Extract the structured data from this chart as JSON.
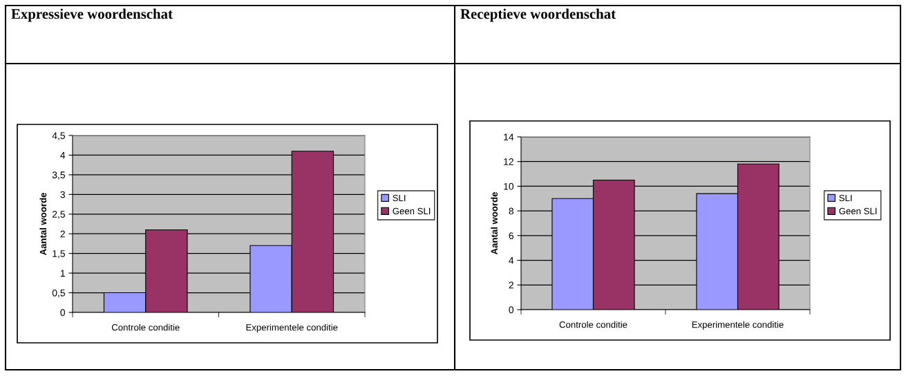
{
  "chart_data": [
    {
      "type": "bar",
      "title": "Expressieve woordenschat",
      "ylabel": "Aantal woorde",
      "categories": [
        "Controle conditie",
        "Experimentele conditie"
      ],
      "series": [
        {
          "name": "SLI",
          "color": "#9999ff",
          "values": [
            0.5,
            1.7
          ]
        },
        {
          "name": "Geen SLI",
          "color": "#993366",
          "values": [
            2.1,
            4.1
          ]
        }
      ],
      "ylim": [
        0,
        4.5
      ],
      "yticks": [
        0,
        {
          "value": 0.5,
          "label": "0,5"
        },
        1,
        {
          "value": 1.5,
          "label": "1,5"
        },
        2,
        {
          "value": 2.5,
          "label": "2,5"
        },
        3,
        {
          "value": 3.5,
          "label": "3,5"
        },
        4,
        {
          "value": 4.5,
          "label": "4,5"
        }
      ],
      "grid": "y",
      "legend": "right"
    },
    {
      "type": "bar",
      "title": "Receptieve woordenschat",
      "ylabel": "Aantal woorde",
      "categories": [
        "Controle conditie",
        "Experimentele conditie"
      ],
      "series": [
        {
          "name": "SLI",
          "color": "#9999ff",
          "values": [
            9,
            9.4
          ]
        },
        {
          "name": "Geen SLI",
          "color": "#993366",
          "values": [
            10.5,
            11.8
          ]
        }
      ],
      "ylim": [
        0,
        14
      ],
      "yticks": [
        0,
        2,
        4,
        6,
        8,
        10,
        12,
        14
      ],
      "grid": "y",
      "legend": "right"
    }
  ]
}
